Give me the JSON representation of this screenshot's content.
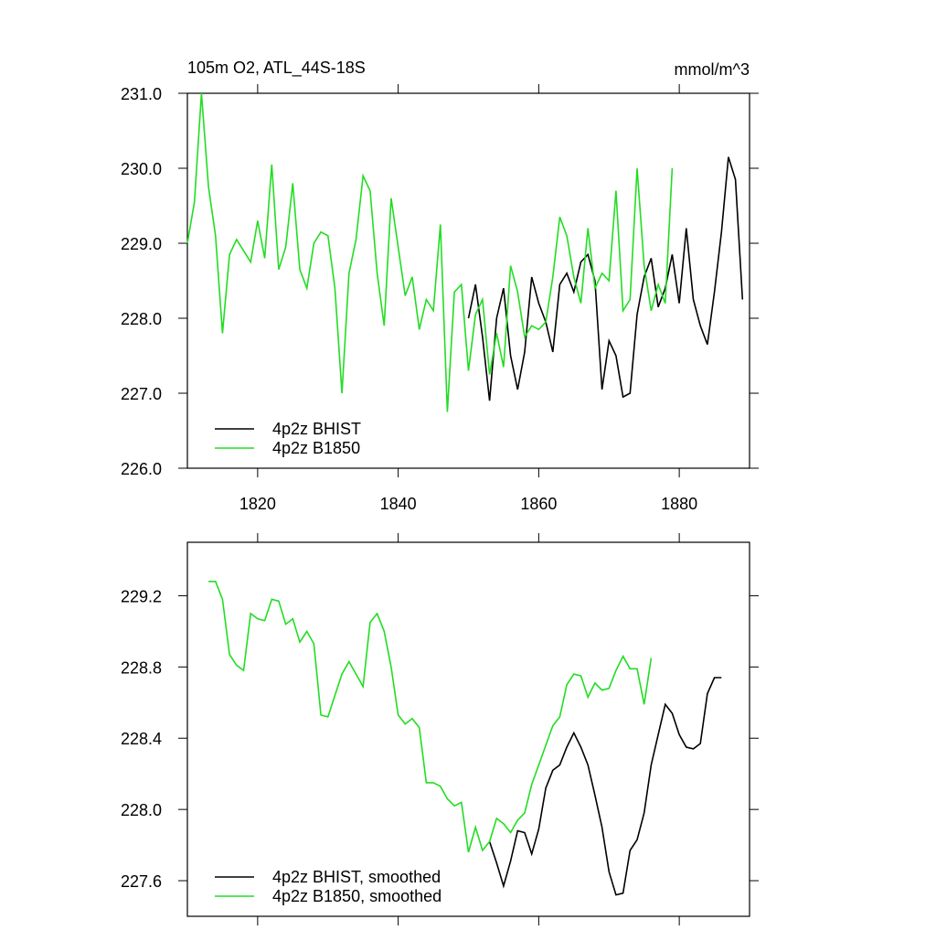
{
  "chart_data": [
    {
      "type": "line",
      "title": "105m O2, ATL_44S-18S",
      "units": "mmol/m^3",
      "xlim": [
        1810,
        1890
      ],
      "ylim": [
        226,
        231
      ],
      "xticks": [
        1820,
        1840,
        1860,
        1880
      ],
      "xtick_labels": true,
      "yticks": [
        {
          "value": 226,
          "label": "226.0"
        },
        {
          "value": 227,
          "label": "227.0"
        },
        {
          "value": 228,
          "label": "228.0"
        },
        {
          "value": 229,
          "label": "229.0"
        },
        {
          "value": 230,
          "label": "230.0"
        },
        {
          "value": 231,
          "label": "231.0"
        }
      ],
      "legend": "lower left",
      "series": [
        {
          "name": "4p2z BHIST",
          "color": "#000000",
          "x": [
            1850,
            1851,
            1852,
            1853,
            1854,
            1855,
            1856,
            1857,
            1858,
            1859,
            1860,
            1861,
            1862,
            1863,
            1864,
            1865,
            1866,
            1867,
            1868,
            1869,
            1870,
            1871,
            1872,
            1873,
            1874,
            1875,
            1876,
            1877,
            1878,
            1879,
            1880,
            1881,
            1882,
            1883,
            1884,
            1885,
            1886,
            1887,
            1888,
            1889
          ],
          "values": [
            228.0,
            228.45,
            227.75,
            226.9,
            228.0,
            228.4,
            227.5,
            227.05,
            227.55,
            228.55,
            228.2,
            227.95,
            227.55,
            228.45,
            228.6,
            228.35,
            228.75,
            228.85,
            228.5,
            227.05,
            227.7,
            227.5,
            226.95,
            227.0,
            228.05,
            228.55,
            228.8,
            228.15,
            228.4,
            228.85,
            228.2,
            229.2,
            228.25,
            227.9,
            227.65,
            228.35,
            229.15,
            230.15,
            229.85,
            228.25
          ]
        },
        {
          "name": "4p2z B1850",
          "color": "#22dd22",
          "x": [
            1810,
            1811,
            1812,
            1813,
            1814,
            1815,
            1816,
            1817,
            1818,
            1819,
            1820,
            1821,
            1822,
            1823,
            1824,
            1825,
            1826,
            1827,
            1828,
            1829,
            1830,
            1831,
            1832,
            1833,
            1834,
            1835,
            1836,
            1837,
            1838,
            1839,
            1840,
            1841,
            1842,
            1843,
            1844,
            1845,
            1846,
            1847,
            1848,
            1849,
            1850,
            1851,
            1852,
            1853,
            1854,
            1855,
            1856,
            1857,
            1858,
            1859,
            1860,
            1861,
            1862,
            1863,
            1864,
            1865,
            1866,
            1867,
            1868,
            1869,
            1870,
            1871,
            1872,
            1873,
            1874,
            1875,
            1876,
            1877,
            1878,
            1879
          ],
          "values": [
            229.0,
            229.55,
            231.0,
            229.75,
            229.1,
            227.8,
            228.85,
            229.05,
            228.9,
            228.75,
            229.3,
            228.8,
            230.05,
            228.65,
            228.95,
            229.8,
            228.65,
            228.4,
            229.0,
            229.15,
            229.1,
            228.4,
            227.0,
            228.6,
            229.05,
            229.9,
            229.7,
            228.6,
            227.9,
            229.6,
            228.95,
            228.3,
            228.55,
            227.85,
            228.25,
            228.1,
            229.25,
            226.75,
            228.35,
            228.45,
            227.3,
            228.05,
            228.25,
            227.25,
            227.8,
            227.35,
            228.7,
            228.35,
            227.75,
            227.9,
            227.85,
            227.95,
            228.55,
            229.35,
            229.1,
            228.55,
            228.2,
            229.2,
            228.4,
            228.6,
            228.5,
            229.7,
            228.1,
            228.25,
            230.0,
            228.7,
            228.1,
            228.45,
            228.2,
            230.0
          ]
        }
      ]
    },
    {
      "type": "line",
      "xlim": [
        1810,
        1890
      ],
      "ylim": [
        227.4,
        229.5
      ],
      "xticks": [
        1820,
        1840,
        1860,
        1880
      ],
      "xtick_labels": false,
      "yticks": [
        {
          "value": 227.6,
          "label": "227.6"
        },
        {
          "value": 228,
          "label": "228.0"
        },
        {
          "value": 228.4,
          "label": "228.4"
        },
        {
          "value": 228.8,
          "label": "228.8"
        },
        {
          "value": 229.2,
          "label": "229.2"
        }
      ],
      "legend": "lower left",
      "series": [
        {
          "name": "4p2z BHIST, smoothed",
          "color": "#000000",
          "x": [
            1853,
            1854,
            1855,
            1856,
            1857,
            1858,
            1859,
            1860,
            1861,
            1862,
            1863,
            1864,
            1865,
            1866,
            1867,
            1868,
            1869,
            1870,
            1871,
            1872,
            1873,
            1874,
            1875,
            1876,
            1877,
            1878,
            1879,
            1880,
            1881,
            1882,
            1883,
            1884,
            1885,
            1886
          ],
          "values": [
            227.82,
            227.7,
            227.57,
            227.71,
            227.88,
            227.87,
            227.75,
            227.89,
            228.12,
            228.22,
            228.25,
            228.35,
            228.43,
            228.35,
            228.25,
            228.08,
            227.9,
            227.65,
            227.52,
            227.53,
            227.77,
            227.83,
            227.98,
            228.25,
            228.42,
            228.59,
            228.54,
            228.42,
            228.35,
            228.34,
            228.37,
            228.65,
            228.74,
            228.74
          ]
        },
        {
          "name": "4p2z B1850, smoothed",
          "color": "#22dd22",
          "x": [
            1813,
            1814,
            1815,
            1816,
            1817,
            1818,
            1819,
            1820,
            1821,
            1822,
            1823,
            1824,
            1825,
            1826,
            1827,
            1828,
            1829,
            1830,
            1831,
            1832,
            1833,
            1834,
            1835,
            1836,
            1837,
            1838,
            1839,
            1840,
            1841,
            1842,
            1843,
            1844,
            1845,
            1846,
            1847,
            1848,
            1849,
            1850,
            1851,
            1852,
            1853,
            1854,
            1855,
            1856,
            1857,
            1858,
            1859,
            1860,
            1861,
            1862,
            1863,
            1864,
            1865,
            1866,
            1867,
            1868,
            1869,
            1870,
            1871,
            1872,
            1873,
            1874,
            1875,
            1876
          ],
          "values": [
            229.28,
            229.28,
            229.18,
            228.87,
            228.81,
            228.78,
            229.1,
            229.07,
            229.06,
            229.18,
            229.17,
            229.04,
            229.07,
            228.94,
            229.0,
            228.93,
            228.53,
            228.52,
            228.64,
            228.76,
            228.83,
            228.76,
            228.69,
            229.05,
            229.1,
            229.0,
            228.8,
            228.53,
            228.48,
            228.51,
            228.46,
            228.15,
            228.15,
            228.13,
            228.06,
            228.02,
            228.04,
            227.76,
            227.9,
            227.77,
            227.82,
            227.95,
            227.92,
            227.87,
            227.94,
            227.98,
            228.14,
            228.25,
            228.36,
            228.47,
            228.52,
            228.7,
            228.76,
            228.75,
            228.63,
            228.71,
            228.67,
            228.68,
            228.78,
            228.86,
            228.79,
            228.79,
            228.59,
            228.85
          ]
        }
      ]
    }
  ]
}
